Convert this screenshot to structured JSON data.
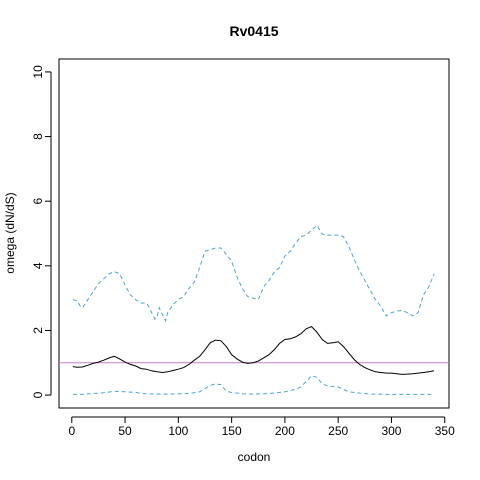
{
  "chart_data": {
    "type": "line",
    "title": "Rv0415",
    "xlabel": "codon",
    "ylabel": "omega (dN/dS)",
    "xlim": [
      -12,
      354
    ],
    "ylim": [
      -0.4,
      10.4
    ],
    "x_ticks": [
      0,
      50,
      100,
      150,
      200,
      250,
      300,
      350
    ],
    "y_ticks": [
      0,
      2,
      4,
      6,
      8,
      10
    ],
    "grid": false,
    "reference_line": {
      "y": 1,
      "color": "#c77cc7"
    },
    "series": [
      {
        "style": "solid",
        "color": "#000000",
        "x": [
          1,
          5,
          10,
          15,
          20,
          25,
          30,
          35,
          40,
          45,
          50,
          55,
          60,
          65,
          70,
          75,
          80,
          85,
          90,
          95,
          100,
          105,
          110,
          115,
          120,
          125,
          130,
          135,
          140,
          145,
          150,
          155,
          160,
          165,
          170,
          175,
          180,
          185,
          190,
          195,
          200,
          205,
          210,
          215,
          220,
          225,
          230,
          235,
          240,
          245,
          250,
          255,
          260,
          265,
          270,
          275,
          280,
          285,
          290,
          295,
          300,
          305,
          310,
          315,
          320,
          325,
          330,
          335,
          340
        ],
        "values": [
          0.88,
          0.86,
          0.87,
          0.92,
          0.98,
          1.02,
          1.08,
          1.15,
          1.2,
          1.12,
          1.02,
          0.95,
          0.9,
          0.82,
          0.8,
          0.75,
          0.72,
          0.7,
          0.72,
          0.76,
          0.8,
          0.85,
          0.95,
          1.08,
          1.2,
          1.4,
          1.62,
          1.7,
          1.68,
          1.5,
          1.25,
          1.12,
          1.02,
          0.98,
          1.0,
          1.05,
          1.15,
          1.25,
          1.4,
          1.6,
          1.72,
          1.74,
          1.8,
          1.9,
          2.05,
          2.12,
          1.95,
          1.72,
          1.6,
          1.62,
          1.65,
          1.5,
          1.3,
          1.1,
          0.95,
          0.85,
          0.78,
          0.72,
          0.7,
          0.68,
          0.68,
          0.66,
          0.64,
          0.65,
          0.66,
          0.68,
          0.7,
          0.72,
          0.75
        ]
      },
      {
        "style": "dashed",
        "color": "#4aa3df",
        "x": [
          1,
          5,
          8,
          10,
          15,
          20,
          25,
          30,
          35,
          40,
          45,
          50,
          55,
          60,
          65,
          70,
          72,
          75,
          78,
          80,
          82,
          85,
          88,
          90,
          95,
          100,
          105,
          110,
          115,
          120,
          125,
          130,
          135,
          140,
          145,
          150,
          155,
          160,
          165,
          170,
          175,
          180,
          185,
          190,
          195,
          200,
          205,
          210,
          215,
          220,
          225,
          230,
          235,
          240,
          245,
          250,
          255,
          260,
          265,
          270,
          275,
          280,
          285,
          290,
          295,
          300,
          305,
          310,
          315,
          320,
          325,
          330,
          335,
          340
        ],
        "values": [
          2.95,
          2.92,
          2.75,
          2.7,
          2.95,
          3.2,
          3.45,
          3.6,
          3.75,
          3.82,
          3.75,
          3.4,
          3.1,
          2.95,
          2.85,
          2.85,
          2.75,
          2.55,
          2.35,
          2.4,
          2.7,
          2.5,
          2.3,
          2.55,
          2.8,
          2.95,
          3.05,
          3.3,
          3.5,
          3.95,
          4.45,
          4.5,
          4.55,
          4.55,
          4.35,
          4.15,
          3.65,
          3.3,
          3.05,
          3.0,
          2.95,
          3.35,
          3.55,
          3.8,
          3.95,
          4.3,
          4.45,
          4.7,
          4.9,
          4.95,
          5.1,
          5.25,
          4.98,
          4.95,
          4.95,
          4.95,
          4.9,
          4.6,
          4.2,
          3.85,
          3.55,
          3.25,
          2.95,
          2.75,
          2.45,
          2.55,
          2.6,
          2.62,
          2.55,
          2.45,
          2.55,
          3.1,
          3.35,
          3.75
        ]
      },
      {
        "style": "dashed",
        "color": "#4aa3df",
        "x": [
          1,
          10,
          20,
          30,
          40,
          50,
          60,
          70,
          80,
          90,
          100,
          110,
          120,
          125,
          130,
          135,
          140,
          145,
          150,
          160,
          170,
          180,
          190,
          200,
          210,
          215,
          220,
          225,
          230,
          235,
          240,
          250,
          260,
          270,
          280,
          290,
          300,
          310,
          320,
          330,
          340
        ],
        "values": [
          0.02,
          0.02,
          0.05,
          0.07,
          0.12,
          0.1,
          0.08,
          0.04,
          0.03,
          0.03,
          0.04,
          0.05,
          0.1,
          0.2,
          0.3,
          0.35,
          0.32,
          0.12,
          0.08,
          0.04,
          0.03,
          0.04,
          0.06,
          0.1,
          0.18,
          0.25,
          0.42,
          0.6,
          0.55,
          0.35,
          0.28,
          0.25,
          0.1,
          0.06,
          0.03,
          0.03,
          0.02,
          0.02,
          0.02,
          0.02,
          0.02
        ]
      }
    ]
  }
}
